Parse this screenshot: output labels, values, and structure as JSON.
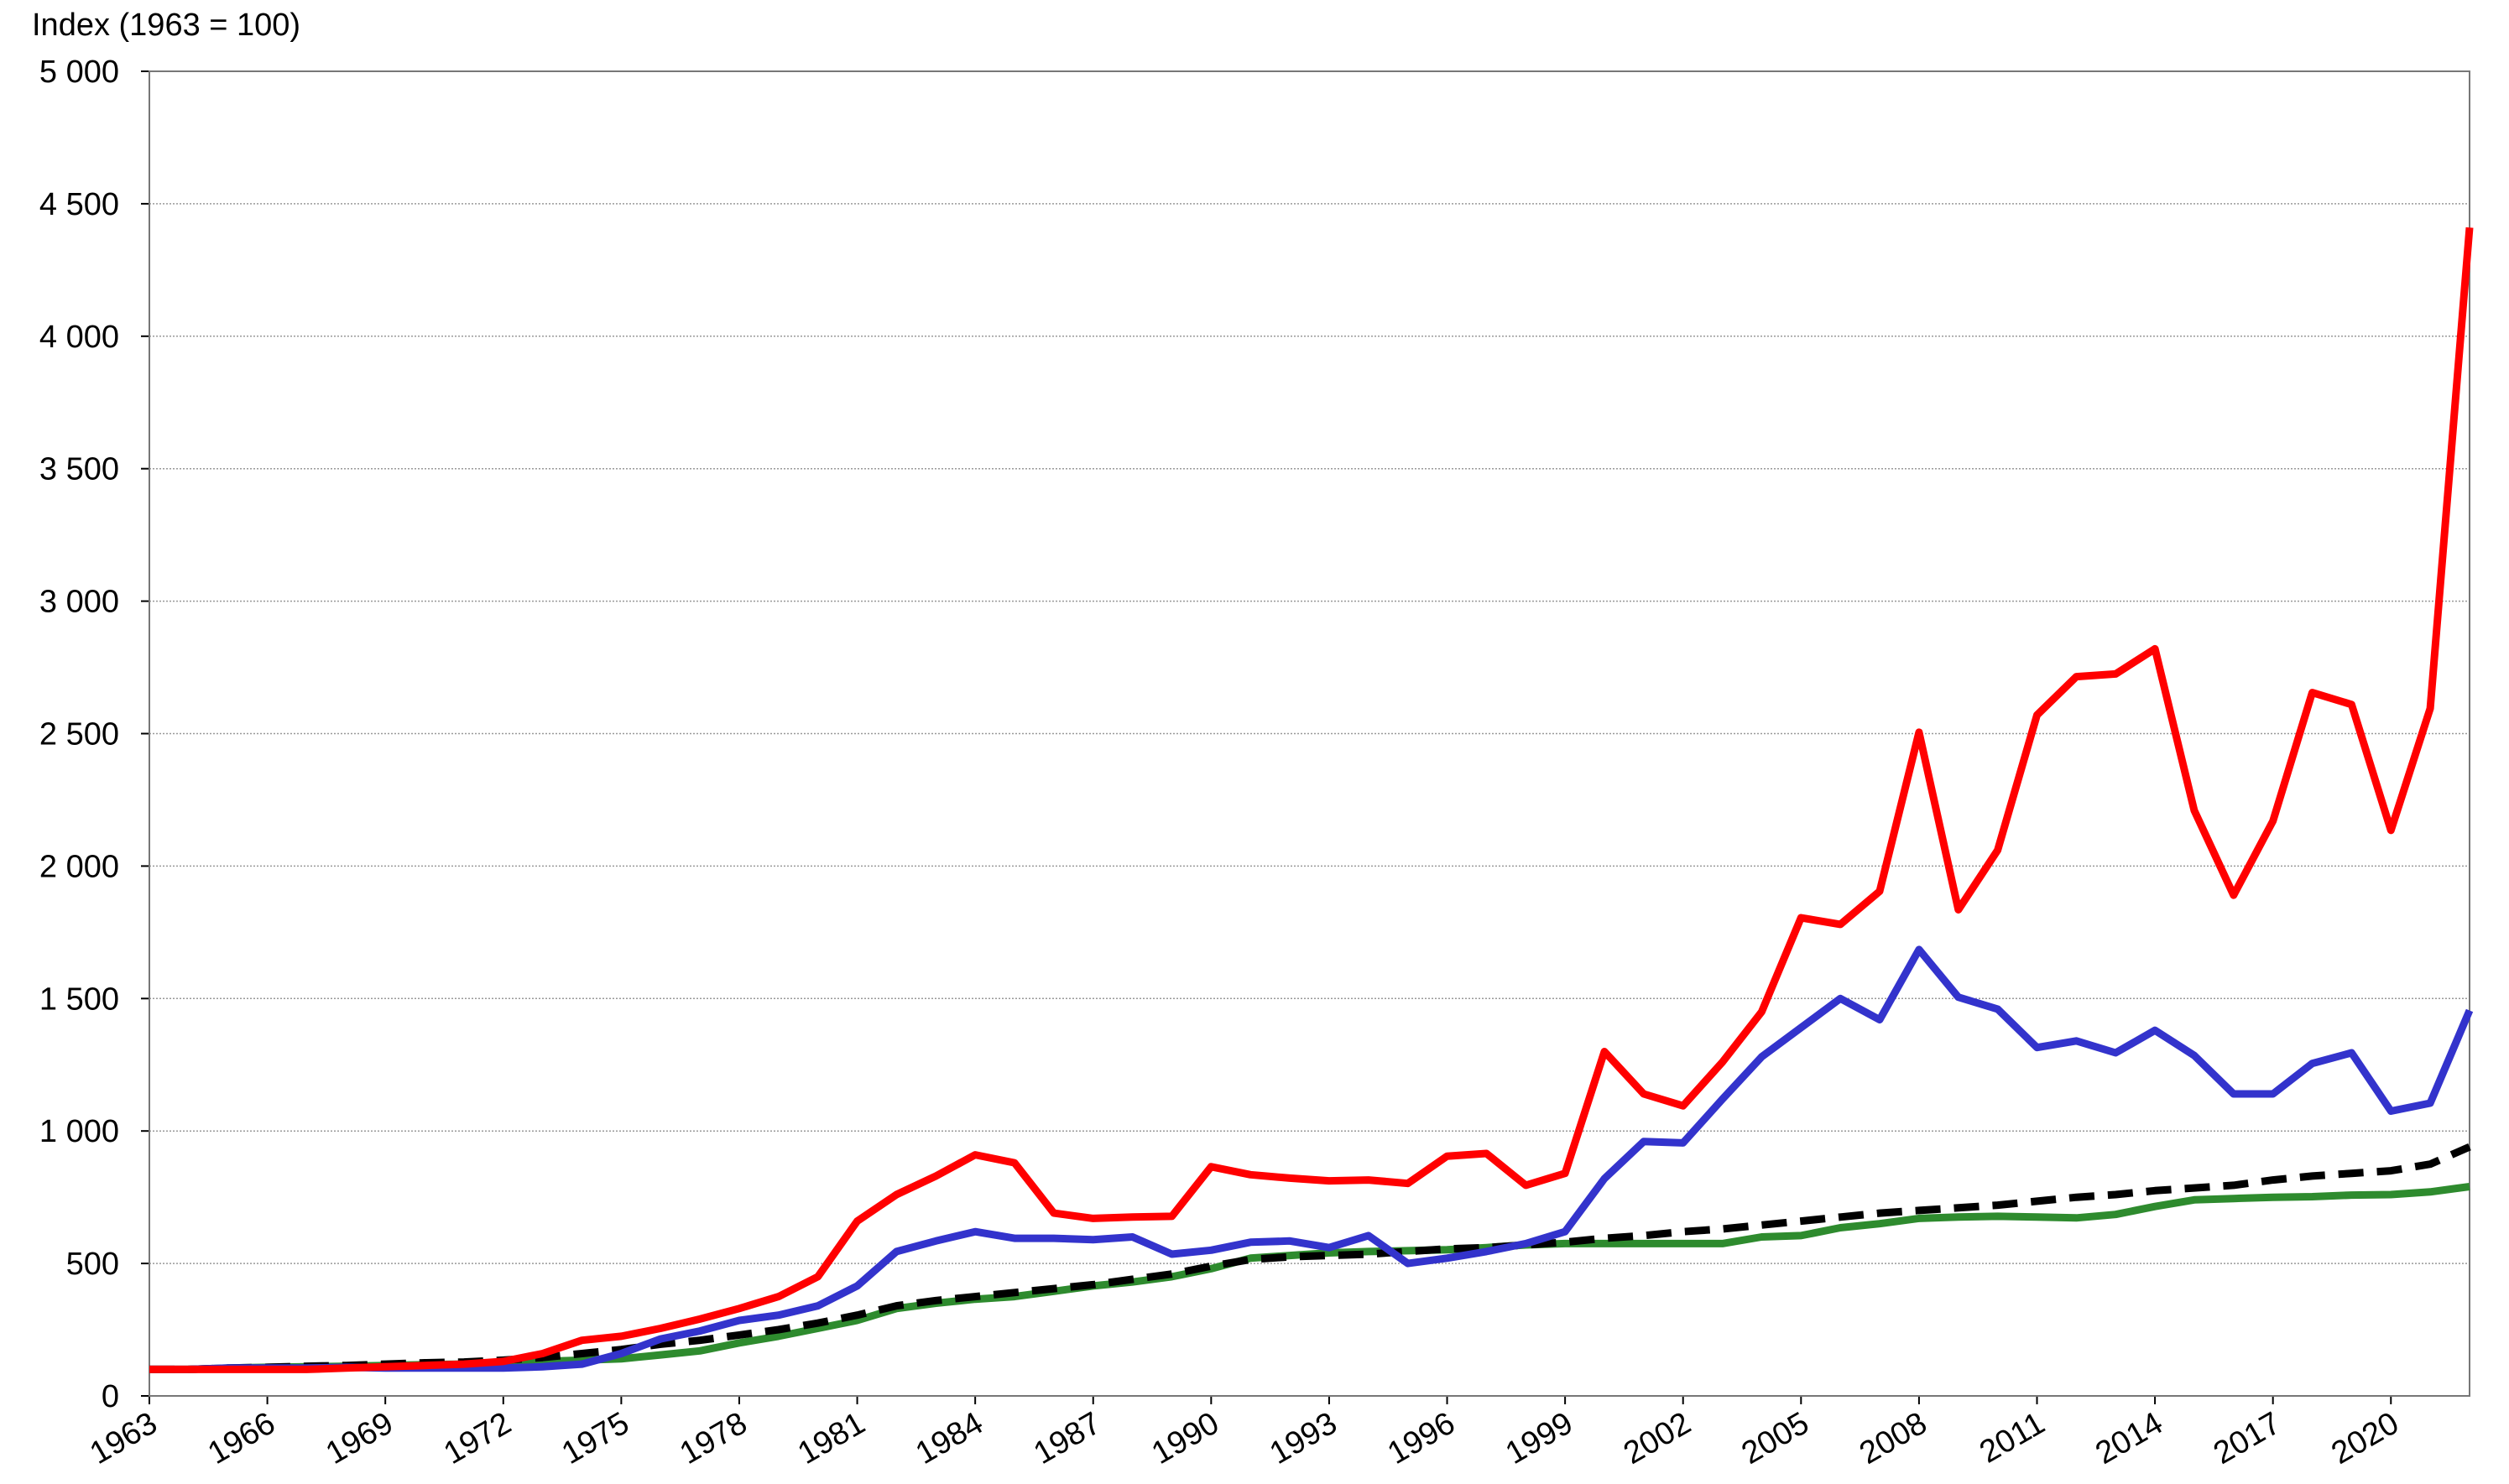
{
  "chart_data": {
    "type": "line",
    "title": "Index (1963 = 100)",
    "x": [
      1963,
      1964,
      1965,
      1966,
      1967,
      1968,
      1969,
      1970,
      1971,
      1972,
      1973,
      1974,
      1975,
      1976,
      1977,
      1978,
      1979,
      1980,
      1981,
      1982,
      1983,
      1984,
      1985,
      1986,
      1987,
      1988,
      1989,
      1990,
      1991,
      1992,
      1993,
      1994,
      1995,
      1996,
      1997,
      1998,
      1999,
      2000,
      2001,
      2002,
      2003,
      2004,
      2005,
      2006,
      2007,
      2008,
      2009,
      2010,
      2011,
      2012,
      2013,
      2014,
      2015,
      2016,
      2017,
      2018,
      2019,
      2020,
      2021,
      2022
    ],
    "xlim": [
      1963,
      2022
    ],
    "xticks": [
      1963,
      1966,
      1969,
      1972,
      1975,
      1978,
      1981,
      1984,
      1987,
      1990,
      1993,
      1996,
      1999,
      2002,
      2005,
      2008,
      2011,
      2014,
      2017,
      2020
    ],
    "ylim": [
      0,
      5000
    ],
    "yticks": [
      0,
      500,
      {
        "value": 1000,
        "label": "1 000"
      },
      {
        "value": 1500,
        "label": "1 500"
      },
      {
        "value": 2000,
        "label": "2 000"
      },
      {
        "value": 2500,
        "label": "2 500"
      },
      {
        "value": 3000,
        "label": "3 000"
      },
      {
        "value": 3500,
        "label": "3 500"
      },
      {
        "value": 4000,
        "label": "4 000"
      },
      {
        "value": 4500,
        "label": "4 500"
      },
      {
        "value": 5000,
        "label": "5 000"
      }
    ],
    "grid": true,
    "series": [
      {
        "color": "#2e8b2e",
        "dashed": false,
        "values": [
          100,
          100,
          105,
          108,
          110,
          112,
          115,
          118,
          120,
          125,
          130,
          135,
          140,
          155,
          170,
          200,
          225,
          255,
          285,
          330,
          350,
          365,
          375,
          395,
          415,
          430,
          450,
          480,
          520,
          530,
          540,
          545,
          548,
          552,
          560,
          570,
          575,
          575,
          575,
          575,
          575,
          600,
          605,
          635,
          650,
          670,
          675,
          678,
          675,
          672,
          685,
          715,
          740,
          745,
          750,
          752,
          758,
          760,
          770,
          790
        ]
      },
      {
        "color": "#000000",
        "dashed": true,
        "values": [
          100,
          100,
          105,
          108,
          112,
          115,
          120,
          125,
          128,
          135,
          145,
          160,
          175,
          195,
          210,
          230,
          250,
          275,
          305,
          340,
          360,
          375,
          390,
          405,
          420,
          440,
          460,
          490,
          515,
          525,
          530,
          535,
          545,
          555,
          560,
          570,
          580,
          595,
          605,
          620,
          630,
          645,
          660,
          675,
          690,
          700,
          710,
          720,
          735,
          750,
          760,
          775,
          785,
          795,
          815,
          830,
          840,
          850,
          875,
          940
        ]
      },
      {
        "color": "#3333cc",
        "dashed": false,
        "values": [
          100,
          100,
          105,
          105,
          105,
          108,
          105,
          105,
          105,
          105,
          110,
          120,
          160,
          215,
          245,
          285,
          305,
          340,
          415,
          545,
          585,
          620,
          595,
          595,
          590,
          600,
          535,
          550,
          580,
          585,
          560,
          605,
          500,
          520,
          545,
          575,
          620,
          820,
          960,
          955,
          1120,
          1280,
          1390,
          1500,
          1420,
          1685,
          1505,
          1460,
          1315,
          1340,
          1295,
          1380,
          1285,
          1140,
          1140,
          1255,
          1295,
          1075,
          1105,
          1455
        ]
      },
      {
        "color": "#ff0000",
        "dashed": false,
        "values": [
          100,
          100,
          100,
          100,
          100,
          105,
          110,
          115,
          120,
          130,
          160,
          210,
          225,
          255,
          290,
          330,
          375,
          450,
          660,
          760,
          830,
          910,
          880,
          690,
          670,
          675,
          678,
          865,
          835,
          822,
          812,
          815,
          802,
          905,
          915,
          795,
          840,
          1300,
          1140,
          1095,
          1260,
          1450,
          1805,
          1780,
          1905,
          2505,
          1835,
          2060,
          2570,
          2715,
          2725,
          2820,
          2210,
          1890,
          2170,
          2655,
          2610,
          2135,
          2595,
          4410
        ]
      }
    ]
  }
}
